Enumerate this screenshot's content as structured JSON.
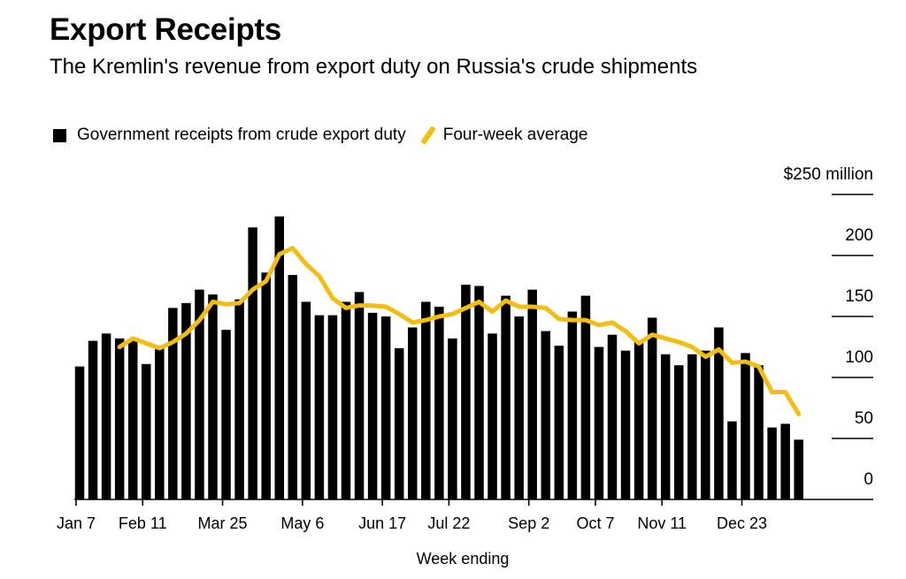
{
  "title": "Export Receipts",
  "subtitle": "The Kremlin's revenue from export duty on Russia's crude shipments",
  "chart_data": {
    "type": "bar",
    "title": "Export Receipts",
    "subtitle": "The Kremlin's revenue from export duty on Russia's crude shipments",
    "xlabel": "Week ending",
    "ylabel": "",
    "y_unit_label": "$250 million",
    "ylim": [
      0,
      250
    ],
    "y_ticks": [
      "0",
      "50",
      "100",
      "150",
      "200",
      "$250 million"
    ],
    "y_tick_values": [
      0,
      50,
      100,
      150,
      200,
      250
    ],
    "x_tick_labels": [
      {
        "label": "Jan 7",
        "index": 0
      },
      {
        "label": "Feb 11",
        "index": 5
      },
      {
        "label": "Mar 25",
        "index": 11
      },
      {
        "label": "May 6",
        "index": 17
      },
      {
        "label": "Jun 17",
        "index": 23
      },
      {
        "label": "Jul 22",
        "index": 28
      },
      {
        "label": "Sep 2",
        "index": 34
      },
      {
        "label": "Oct 7",
        "index": 39
      },
      {
        "label": "Nov 11",
        "index": 44
      },
      {
        "label": "Dec 23",
        "index": 50
      }
    ],
    "grid": false,
    "legend_position": "top-left",
    "colors": {
      "bars": "#000000",
      "average": "#f4bd0f"
    },
    "series": [
      {
        "name": "Government receipts from crude export duty",
        "type": "bar",
        "values": [
          109,
          130,
          136,
          132,
          130,
          111,
          125,
          157,
          161,
          172,
          168,
          139,
          164,
          223,
          186,
          232,
          184,
          162,
          151,
          151,
          162,
          170,
          153,
          150,
          124,
          141,
          162,
          158,
          132,
          176,
          175,
          136,
          167,
          150,
          172,
          138,
          126,
          154,
          167,
          125,
          135,
          122,
          130,
          149,
          119,
          110,
          119,
          122,
          141,
          64,
          120,
          110,
          59,
          62,
          49
        ]
      },
      {
        "name": "Four-week average",
        "type": "line",
        "values": [
          null,
          null,
          null,
          125,
          132,
          128,
          124,
          129,
          136,
          147,
          162,
          160,
          161,
          172,
          179,
          201,
          206,
          193,
          183,
          165,
          157,
          159,
          159,
          158,
          152,
          145,
          147,
          150,
          152,
          157,
          162,
          154,
          163,
          158,
          158,
          157,
          148,
          147,
          147,
          143,
          145,
          138,
          128,
          135,
          132,
          129,
          125,
          117,
          123,
          112,
          113,
          109,
          88,
          88,
          70
        ]
      }
    ]
  }
}
